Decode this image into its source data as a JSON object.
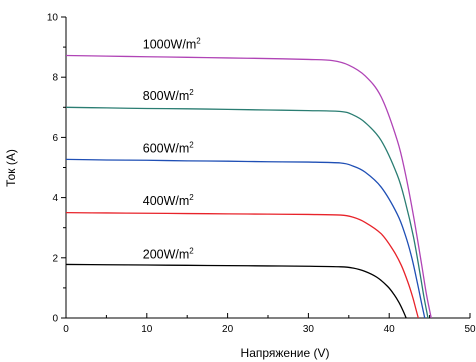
{
  "chart_data": {
    "type": "line",
    "title": "",
    "xlabel": "Напряжение (V)",
    "ylabel": "Ток (A)",
    "xlim": [
      0,
      50
    ],
    "ylim": [
      0,
      10
    ],
    "xticks": [
      0,
      10,
      20,
      30,
      40,
      50
    ],
    "xtick_labels": [
      "0",
      "10",
      "20",
      "30",
      "40",
      "50"
    ],
    "yticks": [
      0,
      2,
      4,
      6,
      8,
      10
    ],
    "ytick_labels": [
      "0",
      "2",
      "4",
      "6",
      "8",
      "10"
    ],
    "grid": false,
    "legend": "none",
    "series": [
      {
        "name": "1000W/m",
        "sup": "2",
        "color": "#b044b6",
        "x": [
          0,
          5,
          10,
          15,
          20,
          25,
          30,
          33,
          35,
          37,
          39,
          41,
          42,
          43,
          44,
          44.6,
          45.2
        ],
        "y": [
          8.72,
          8.7,
          8.68,
          8.66,
          8.64,
          8.62,
          8.59,
          8.55,
          8.4,
          8.05,
          7.35,
          5.9,
          4.8,
          3.4,
          1.8,
          0.8,
          0
        ]
      },
      {
        "name": "800W/m",
        "sup": "2",
        "color": "#2a7d72",
        "x": [
          0,
          5,
          10,
          15,
          20,
          25,
          30,
          34,
          35.5,
          37,
          39,
          41,
          42,
          43,
          43.8,
          44.3,
          44.8
        ],
        "y": [
          7.0,
          6.98,
          6.96,
          6.95,
          6.93,
          6.91,
          6.89,
          6.86,
          6.75,
          6.5,
          5.9,
          4.75,
          3.85,
          2.7,
          1.5,
          0.7,
          0
        ]
      },
      {
        "name": "600W/m",
        "sup": "2",
        "color": "#1f4fb5",
        "x": [
          0,
          5,
          10,
          15,
          20,
          25,
          30,
          34,
          35.5,
          37,
          39,
          41,
          42,
          42.8,
          43.5,
          44,
          44.4
        ],
        "y": [
          5.27,
          5.25,
          5.24,
          5.22,
          5.21,
          5.19,
          5.18,
          5.15,
          5.05,
          4.85,
          4.35,
          3.45,
          2.75,
          2.0,
          1.15,
          0.5,
          0
        ]
      },
      {
        "name": "400W/m",
        "sup": "2",
        "color": "#e8232a",
        "x": [
          0,
          5,
          10,
          15,
          20,
          25,
          30,
          34,
          35.5,
          37,
          39,
          40.5,
          41.5,
          42.3,
          42.9,
          43.3,
          43.6
        ],
        "y": [
          3.5,
          3.49,
          3.48,
          3.47,
          3.46,
          3.45,
          3.44,
          3.42,
          3.35,
          3.18,
          2.8,
          2.25,
          1.75,
          1.2,
          0.7,
          0.3,
          0
        ]
      },
      {
        "name": "200W/m",
        "sup": "2",
        "color": "#000000",
        "x": [
          0,
          5,
          10,
          15,
          20,
          25,
          30,
          34,
          35.5,
          37,
          38.5,
          39.8,
          40.6,
          41.2,
          41.7,
          42.1
        ],
        "y": [
          1.78,
          1.77,
          1.76,
          1.75,
          1.74,
          1.73,
          1.72,
          1.7,
          1.66,
          1.55,
          1.35,
          1.05,
          0.78,
          0.52,
          0.25,
          0
        ]
      }
    ]
  }
}
